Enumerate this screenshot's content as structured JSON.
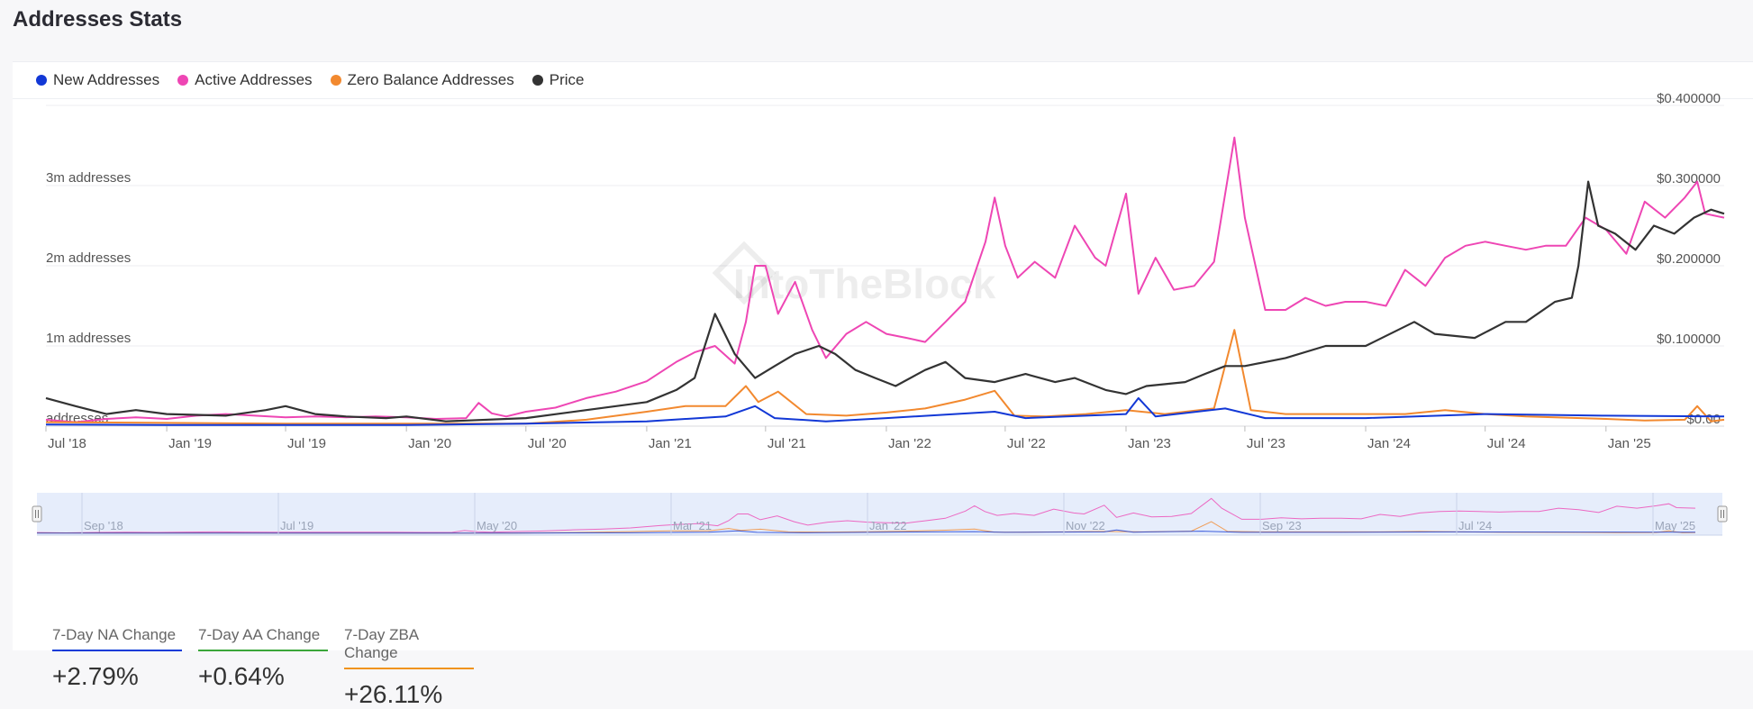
{
  "page": {
    "title": "Addresses Stats",
    "watermark": "IntoTheBlock"
  },
  "colors": {
    "new": "#1238d6",
    "active": "#ee46b4",
    "zero": "#f2892f",
    "price": "#333333",
    "grid": "#ececf0",
    "navigator_bg": "#e6edfb"
  },
  "legend": [
    {
      "label": "New Addresses",
      "color": "#1238d6"
    },
    {
      "label": "Active Addresses",
      "color": "#ee46b4"
    },
    {
      "label": "Zero Balance Addresses",
      "color": "#f2892f"
    },
    {
      "label": "Price",
      "color": "#333333"
    }
  ],
  "navigator_labels": [
    "Sep '18",
    "Jul '19",
    "May '20",
    "Mar '21",
    "Jan '22",
    "Nov '22",
    "Sep '23",
    "Jul '24",
    "May '25"
  ],
  "stats": [
    {
      "label": "7-Day NA Change",
      "value": "+2.79%",
      "color": "#0a3bd8"
    },
    {
      "label": "7-Day AA Change",
      "value": "+0.64%",
      "color": "#3aa63a"
    },
    {
      "label": "7-Day ZBA Change",
      "value": "+26.11%",
      "color": "#f0931e"
    }
  ],
  "chart_data": {
    "type": "line",
    "x_range": [
      "2018-07-01",
      "2025-06-30"
    ],
    "x_ticks": [
      "Jul '18",
      "Jan '19",
      "Jul '19",
      "Jan '20",
      "Jul '20",
      "Jan '21",
      "Jul '21",
      "Jan '22",
      "Jul '22",
      "Jan '23",
      "Jul '23",
      "Jan '24",
      "Jul '24",
      "Jan '25"
    ],
    "x_tick_dates": [
      "2018-07-01",
      "2019-01-01",
      "2019-07-01",
      "2020-01-01",
      "2020-07-01",
      "2021-01-01",
      "2021-07-01",
      "2022-01-01",
      "2022-07-01",
      "2023-01-01",
      "2023-07-01",
      "2024-01-01",
      "2024-07-01",
      "2025-01-01"
    ],
    "y_left": {
      "ticks": [
        "addresses",
        "1m addresses",
        "2m addresses",
        "3m addresses"
      ],
      "tick_values": [
        0,
        1000000,
        2000000,
        3000000
      ],
      "range": [
        0,
        4000000
      ]
    },
    "y_right": {
      "ticks": [
        "$0.00",
        "$0.100000",
        "$0.200000",
        "$0.300000",
        "$0.400000"
      ],
      "tick_values": [
        0,
        0.1,
        0.2,
        0.3,
        0.4
      ],
      "range": [
        0,
        0.4
      ]
    },
    "grid": true,
    "legend_position": "top-left",
    "series": [
      {
        "name": "Active Addresses",
        "axis": "left",
        "color": "#ee46b4",
        "points": [
          [
            "2018-07-01",
            80000
          ],
          [
            "2018-08-15",
            50000
          ],
          [
            "2018-10-01",
            90000
          ],
          [
            "2018-11-15",
            110000
          ],
          [
            "2019-01-01",
            90000
          ],
          [
            "2019-02-15",
            130000
          ],
          [
            "2019-04-01",
            150000
          ],
          [
            "2019-05-15",
            130000
          ],
          [
            "2019-07-01",
            110000
          ],
          [
            "2019-08-15",
            120000
          ],
          [
            "2019-10-01",
            110000
          ],
          [
            "2019-11-15",
            120000
          ],
          [
            "2020-01-01",
            110000
          ],
          [
            "2020-02-15",
            90000
          ],
          [
            "2020-04-01",
            100000
          ],
          [
            "2020-04-20",
            290000
          ],
          [
            "2020-05-10",
            160000
          ],
          [
            "2020-06-01",
            120000
          ],
          [
            "2020-07-01",
            180000
          ],
          [
            "2020-08-15",
            230000
          ],
          [
            "2020-10-01",
            350000
          ],
          [
            "2020-11-15",
            430000
          ],
          [
            "2021-01-01",
            560000
          ],
          [
            "2021-02-15",
            800000
          ],
          [
            "2021-03-15",
            920000
          ],
          [
            "2021-04-15",
            1000000
          ],
          [
            "2021-05-15",
            780000
          ],
          [
            "2021-06-01",
            1300000
          ],
          [
            "2021-06-15",
            2000000
          ],
          [
            "2021-07-01",
            2000000
          ],
          [
            "2021-07-20",
            1400000
          ],
          [
            "2021-08-15",
            1800000
          ],
          [
            "2021-09-10",
            1200000
          ],
          [
            "2021-10-01",
            850000
          ],
          [
            "2021-11-01",
            1150000
          ],
          [
            "2021-12-01",
            1300000
          ],
          [
            "2022-01-01",
            1150000
          ],
          [
            "2022-02-01",
            1100000
          ],
          [
            "2022-03-01",
            1050000
          ],
          [
            "2022-04-01",
            1300000
          ],
          [
            "2022-05-01",
            1550000
          ],
          [
            "2022-06-01",
            2300000
          ],
          [
            "2022-06-15",
            2850000
          ],
          [
            "2022-07-01",
            2250000
          ],
          [
            "2022-07-20",
            1850000
          ],
          [
            "2022-08-15",
            2050000
          ],
          [
            "2022-09-15",
            1850000
          ],
          [
            "2022-10-15",
            2500000
          ],
          [
            "2022-11-15",
            2100000
          ],
          [
            "2022-12-01",
            2000000
          ],
          [
            "2023-01-01",
            2900000
          ],
          [
            "2023-01-20",
            1650000
          ],
          [
            "2023-02-15",
            2100000
          ],
          [
            "2023-03-15",
            1700000
          ],
          [
            "2023-04-15",
            1750000
          ],
          [
            "2023-05-15",
            2050000
          ],
          [
            "2023-06-15",
            3600000
          ],
          [
            "2023-07-01",
            2600000
          ],
          [
            "2023-08-01",
            1450000
          ],
          [
            "2023-09-01",
            1450000
          ],
          [
            "2023-10-01",
            1600000
          ],
          [
            "2023-11-01",
            1500000
          ],
          [
            "2023-12-01",
            1550000
          ],
          [
            "2024-01-01",
            1550000
          ],
          [
            "2024-02-01",
            1500000
          ],
          [
            "2024-03-01",
            1950000
          ],
          [
            "2024-04-01",
            1750000
          ],
          [
            "2024-05-01",
            2100000
          ],
          [
            "2024-06-01",
            2250000
          ],
          [
            "2024-07-01",
            2300000
          ],
          [
            "2024-08-01",
            2250000
          ],
          [
            "2024-09-01",
            2200000
          ],
          [
            "2024-10-01",
            2250000
          ],
          [
            "2024-11-01",
            2250000
          ],
          [
            "2024-12-01",
            2600000
          ],
          [
            "2025-01-01",
            2450000
          ],
          [
            "2025-02-01",
            2150000
          ],
          [
            "2025-03-01",
            2800000
          ],
          [
            "2025-04-01",
            2600000
          ],
          [
            "2025-05-01",
            2850000
          ],
          [
            "2025-05-20",
            3050000
          ],
          [
            "2025-06-01",
            2650000
          ],
          [
            "2025-06-30",
            2600000
          ]
        ]
      },
      {
        "name": "Zero Balance Addresses",
        "axis": "left",
        "color": "#f2892f",
        "points": [
          [
            "2018-07-01",
            50000
          ],
          [
            "2019-01-01",
            40000
          ],
          [
            "2019-07-01",
            30000
          ],
          [
            "2020-01-01",
            30000
          ],
          [
            "2020-07-01",
            30000
          ],
          [
            "2020-10-01",
            80000
          ],
          [
            "2021-01-01",
            180000
          ],
          [
            "2021-03-01",
            250000
          ],
          [
            "2021-05-01",
            250000
          ],
          [
            "2021-06-01",
            500000
          ],
          [
            "2021-06-20",
            300000
          ],
          [
            "2021-07-20",
            430000
          ],
          [
            "2021-09-01",
            150000
          ],
          [
            "2021-11-01",
            130000
          ],
          [
            "2022-01-01",
            170000
          ],
          [
            "2022-03-01",
            220000
          ],
          [
            "2022-05-01",
            330000
          ],
          [
            "2022-06-15",
            440000
          ],
          [
            "2022-07-15",
            130000
          ],
          [
            "2022-09-01",
            120000
          ],
          [
            "2022-11-01",
            150000
          ],
          [
            "2023-01-01",
            200000
          ],
          [
            "2023-03-01",
            150000
          ],
          [
            "2023-05-15",
            220000
          ],
          [
            "2023-06-15",
            1200000
          ],
          [
            "2023-07-10",
            200000
          ],
          [
            "2023-09-01",
            150000
          ],
          [
            "2024-01-01",
            150000
          ],
          [
            "2024-03-01",
            150000
          ],
          [
            "2024-05-01",
            200000
          ],
          [
            "2024-07-01",
            150000
          ],
          [
            "2024-09-01",
            120000
          ],
          [
            "2025-01-01",
            90000
          ],
          [
            "2025-03-01",
            70000
          ],
          [
            "2025-05-01",
            80000
          ],
          [
            "2025-05-20",
            250000
          ],
          [
            "2025-06-10",
            60000
          ],
          [
            "2025-06-30",
            80000
          ]
        ]
      },
      {
        "name": "New Addresses",
        "axis": "left",
        "color": "#1238d6",
        "points": [
          [
            "2018-07-01",
            20000
          ],
          [
            "2019-01-01",
            15000
          ],
          [
            "2019-07-01",
            15000
          ],
          [
            "2020-01-01",
            15000
          ],
          [
            "2020-07-01",
            30000
          ],
          [
            "2021-01-01",
            60000
          ],
          [
            "2021-05-01",
            120000
          ],
          [
            "2021-06-15",
            250000
          ],
          [
            "2021-07-15",
            100000
          ],
          [
            "2021-10-01",
            60000
          ],
          [
            "2022-01-01",
            100000
          ],
          [
            "2022-06-15",
            180000
          ],
          [
            "2022-08-01",
            100000
          ],
          [
            "2023-01-01",
            150000
          ],
          [
            "2023-01-20",
            350000
          ],
          [
            "2023-02-15",
            120000
          ],
          [
            "2023-06-01",
            220000
          ],
          [
            "2023-08-01",
            100000
          ],
          [
            "2024-01-01",
            100000
          ],
          [
            "2024-07-01",
            150000
          ],
          [
            "2025-01-01",
            130000
          ],
          [
            "2025-06-30",
            120000
          ]
        ]
      },
      {
        "name": "Price",
        "axis": "right",
        "color": "#333333",
        "points": [
          [
            "2018-07-01",
            0.035
          ],
          [
            "2018-08-15",
            0.025
          ],
          [
            "2018-10-01",
            0.015
          ],
          [
            "2018-11-15",
            0.02
          ],
          [
            "2019-01-01",
            0.015
          ],
          [
            "2019-04-01",
            0.013
          ],
          [
            "2019-06-01",
            0.02
          ],
          [
            "2019-07-01",
            0.025
          ],
          [
            "2019-08-15",
            0.015
          ],
          [
            "2019-10-01",
            0.012
          ],
          [
            "2019-12-01",
            0.01
          ],
          [
            "2020-01-01",
            0.012
          ],
          [
            "2020-03-01",
            0.006
          ],
          [
            "2020-04-01",
            0.007
          ],
          [
            "2020-07-01",
            0.01
          ],
          [
            "2020-10-01",
            0.02
          ],
          [
            "2021-01-01",
            0.03
          ],
          [
            "2021-02-15",
            0.045
          ],
          [
            "2021-03-15",
            0.06
          ],
          [
            "2021-04-15",
            0.14
          ],
          [
            "2021-05-15",
            0.09
          ],
          [
            "2021-06-15",
            0.06
          ],
          [
            "2021-07-15",
            0.075
          ],
          [
            "2021-08-15",
            0.09
          ],
          [
            "2021-09-20",
            0.1
          ],
          [
            "2021-10-15",
            0.09
          ],
          [
            "2021-11-15",
            0.07
          ],
          [
            "2021-12-15",
            0.06
          ],
          [
            "2022-01-15",
            0.05
          ],
          [
            "2022-03-01",
            0.07
          ],
          [
            "2022-04-01",
            0.08
          ],
          [
            "2022-05-01",
            0.06
          ],
          [
            "2022-06-15",
            0.055
          ],
          [
            "2022-08-01",
            0.065
          ],
          [
            "2022-09-15",
            0.055
          ],
          [
            "2022-10-15",
            0.06
          ],
          [
            "2022-12-01",
            0.045
          ],
          [
            "2023-01-01",
            0.04
          ],
          [
            "2023-02-01",
            0.05
          ],
          [
            "2023-04-01",
            0.055
          ],
          [
            "2023-05-01",
            0.065
          ],
          [
            "2023-06-01",
            0.075
          ],
          [
            "2023-07-01",
            0.075
          ],
          [
            "2023-09-01",
            0.085
          ],
          [
            "2023-11-01",
            0.1
          ],
          [
            "2024-01-01",
            0.1
          ],
          [
            "2024-03-15",
            0.13
          ],
          [
            "2024-04-15",
            0.115
          ],
          [
            "2024-06-15",
            0.11
          ],
          [
            "2024-08-01",
            0.13
          ],
          [
            "2024-09-01",
            0.13
          ],
          [
            "2024-10-15",
            0.155
          ],
          [
            "2024-11-10",
            0.16
          ],
          [
            "2024-11-20",
            0.2
          ],
          [
            "2024-12-05",
            0.305
          ],
          [
            "2024-12-20",
            0.25
          ],
          [
            "2025-01-15",
            0.24
          ],
          [
            "2025-02-15",
            0.22
          ],
          [
            "2025-03-15",
            0.25
          ],
          [
            "2025-04-15",
            0.24
          ],
          [
            "2025-05-15",
            0.26
          ],
          [
            "2025-06-10",
            0.27
          ],
          [
            "2025-06-30",
            0.265
          ]
        ]
      }
    ]
  }
}
